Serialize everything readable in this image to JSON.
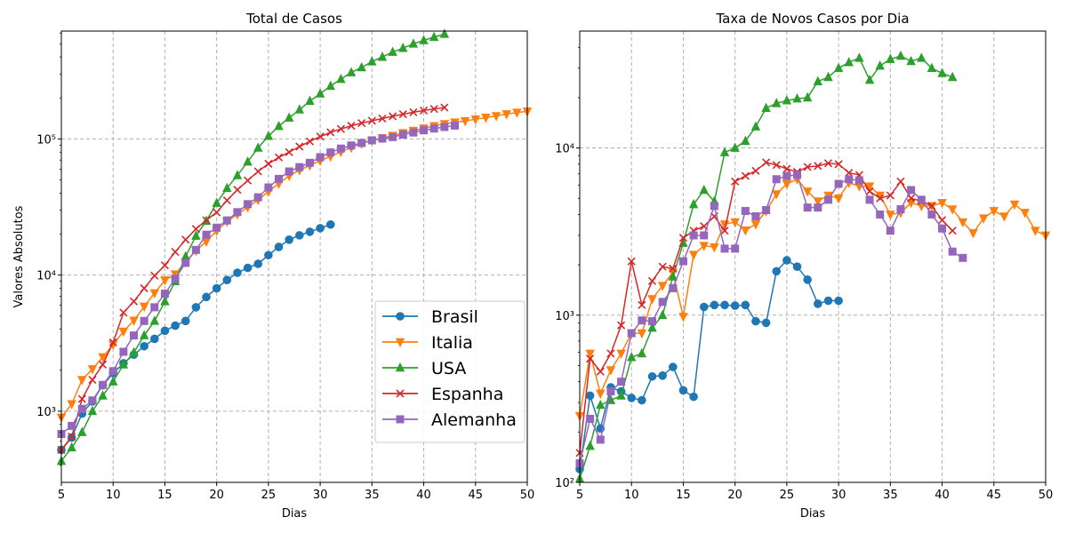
{
  "chart_data": [
    {
      "type": "line",
      "title": "Total de Casos",
      "xlabel": "Dias",
      "ylabel": "Valores Absolutos",
      "yscale": "log",
      "xlim": [
        5,
        50
      ],
      "ylim": [
        300,
        620000
      ],
      "xticks": [
        "5",
        "10",
        "15",
        "20",
        "25",
        "30",
        "35",
        "40",
        "45",
        "50"
      ],
      "yticks": [
        "10³",
        "10⁴",
        "10⁵"
      ],
      "grid": true,
      "legend": "center-right",
      "series": [
        {
          "name": "Brasil",
          "color": "#1f77b4",
          "marker": "circle",
          "x": [
            5,
            6,
            7,
            8,
            9,
            10,
            11,
            12,
            13,
            14,
            15,
            16,
            17,
            18,
            19,
            20,
            21,
            22,
            23,
            24,
            25,
            26,
            27,
            28,
            29,
            30,
            31
          ],
          "y": [
            520,
            640,
            960,
            1180,
            1550,
            1900,
            2250,
            2600,
            3000,
            3400,
            3900,
            4250,
            4600,
            5800,
            6900,
            8000,
            9200,
            10400,
            11300,
            12100,
            14000,
            16100,
            18200,
            19600,
            20800,
            22100,
            23500
          ]
        },
        {
          "name": "Italia",
          "color": "#ff7f0e",
          "marker": "triangle-down",
          "x": [
            5,
            6,
            7,
            8,
            9,
            10,
            11,
            12,
            13,
            14,
            15,
            16,
            17,
            18,
            19,
            20,
            21,
            22,
            23,
            24,
            25,
            26,
            27,
            28,
            29,
            30,
            31,
            32,
            33,
            34,
            35,
            36,
            37,
            38,
            39,
            40,
            41,
            42,
            43,
            44,
            45,
            46,
            47,
            48,
            49,
            50
          ],
          "y": [
            900,
            1130,
            1700,
            2040,
            2500,
            3090,
            3850,
            4640,
            5880,
            7380,
            9170,
            10150,
            12460,
            15110,
            17660,
            21150,
            24750,
            27980,
            31500,
            35700,
            41000,
            47000,
            53600,
            59100,
            63900,
            69200,
            74400,
            80500,
            86500,
            92500,
            97700,
            101700,
            105800,
            110600,
            115200,
            119800,
            124600,
            128900,
            132500,
            135600,
            139400,
            143600,
            147600,
            152300,
            156400,
            159500
          ]
        },
        {
          "name": "USA",
          "color": "#2ca02c",
          "marker": "triangle-up",
          "x": [
            5,
            6,
            7,
            8,
            9,
            10,
            11,
            12,
            13,
            14,
            15,
            16,
            17,
            18,
            19,
            20,
            21,
            22,
            23,
            24,
            25,
            26,
            27,
            28,
            29,
            30,
            31,
            32,
            33,
            34,
            35,
            36,
            37,
            38,
            39,
            40,
            41,
            42
          ],
          "y": [
            430,
            540,
            700,
            1000,
            1300,
            1650,
            2200,
            2700,
            3600,
            4600,
            6400,
            9000,
            13700,
            19400,
            25000,
            33800,
            43500,
            54000,
            68000,
            86000,
            105000,
            124000,
            143000,
            164000,
            190000,
            215000,
            245000,
            275000,
            308000,
            335000,
            370000,
            400000,
            435000,
            465000,
            500000,
            530000,
            560000,
            590000
          ]
        },
        {
          "name": "Espanha",
          "color": "#d62728",
          "marker": "x",
          "x": [
            5,
            6,
            7,
            8,
            9,
            10,
            11,
            12,
            13,
            14,
            15,
            16,
            17,
            18,
            19,
            20,
            21,
            22,
            23,
            24,
            25,
            26,
            27,
            28,
            29,
            30,
            31,
            32,
            33,
            34,
            35,
            36,
            37,
            38,
            39,
            40,
            41,
            42
          ],
          "y": [
            520,
            650,
            1230,
            1700,
            2200,
            3200,
            5300,
            6400,
            8000,
            9900,
            11800,
            14800,
            18200,
            21800,
            25300,
            28900,
            35400,
            42300,
            49500,
            57800,
            65700,
            73200,
            80000,
            87900,
            95900,
            104100,
            111800,
            118400,
            124900,
            130800,
            136000,
            141300,
            146700,
            152000,
            157000,
            161800,
            166000,
            170000
          ]
        },
        {
          "name": "Alemanha",
          "color": "#9467bd",
          "marker": "square",
          "x": [
            5,
            6,
            7,
            8,
            9,
            10,
            11,
            12,
            13,
            14,
            15,
            16,
            17,
            18,
            19,
            20,
            21,
            22,
            23,
            24,
            25,
            26,
            27,
            28,
            29,
            30,
            31,
            32,
            33,
            34,
            35,
            36,
            37,
            38,
            39,
            40,
            41,
            42,
            43
          ],
          "y": [
            680,
            780,
            1040,
            1200,
            1560,
            1970,
            2730,
            3600,
            4600,
            5800,
            7300,
            9400,
            12300,
            15300,
            19800,
            22300,
            25200,
            29000,
            33200,
            37300,
            44000,
            50900,
            57700,
            62100,
            66800,
            73500,
            79600,
            85000,
            89600,
            93400,
            97700,
            100700,
            103200,
            107600,
            111500,
            115700,
            119200,
            122400,
            125400
          ]
        }
      ]
    },
    {
      "type": "line",
      "title": "Taxa de Novos Casos por Dia",
      "xlabel": "Dias",
      "yscale": "log",
      "xlim": [
        5,
        50
      ],
      "ylim": [
        100,
        50000
      ],
      "xticks": [
        "5",
        "10",
        "15",
        "20",
        "25",
        "30",
        "35",
        "40",
        "45",
        "50"
      ],
      "yticks": [
        "10²",
        "10³",
        "10⁴"
      ],
      "grid": true,
      "series": [
        {
          "name": "Brasil",
          "color": "#1f77b4",
          "marker": "circle",
          "x": [
            5,
            6,
            7,
            8,
            9,
            10,
            11,
            12,
            13,
            14,
            15,
            16,
            17,
            18,
            19,
            20,
            21,
            22,
            23,
            24,
            25,
            26,
            27,
            28,
            29,
            30
          ],
          "y": [
            120,
            330,
            210,
            370,
            350,
            320,
            310,
            430,
            435,
            490,
            355,
            325,
            1120,
            1150,
            1150,
            1140,
            1150,
            920,
            900,
            1830,
            2130,
            1950,
            1630,
            1170,
            1220,
            1220
          ]
        },
        {
          "name": "Italia",
          "color": "#ff7f0e",
          "marker": "triangle-down",
          "x": [
            5,
            6,
            7,
            8,
            9,
            10,
            11,
            12,
            13,
            14,
            15,
            16,
            17,
            18,
            19,
            20,
            21,
            22,
            23,
            24,
            25,
            26,
            27,
            28,
            29,
            30,
            31,
            32,
            33,
            34,
            35,
            36,
            37,
            38,
            39,
            40,
            41,
            42,
            43,
            44,
            45,
            46,
            47,
            48,
            49,
            50
          ],
          "y": [
            250,
            590,
            340,
            470,
            590,
            780,
            780,
            1250,
            1500,
            1800,
            980,
            2300,
            2600,
            2550,
            3500,
            3600,
            3220,
            3500,
            4200,
            5300,
            6100,
            6500,
            5500,
            4800,
            5200,
            5000,
            6200,
            5900,
            5900,
            5200,
            4000,
            4100,
            4700,
            4500,
            4500,
            4700,
            4300,
            3600,
            3100,
            3800,
            4200,
            3900,
            4600,
            4100,
            3200,
            3000
          ]
        },
        {
          "name": "USA",
          "color": "#2ca02c",
          "marker": "triangle-up",
          "x": [
            5,
            6,
            7,
            8,
            9,
            10,
            11,
            12,
            13,
            14,
            15,
            16,
            17,
            18,
            19,
            20,
            21,
            22,
            23,
            24,
            25,
            26,
            27,
            28,
            29,
            30,
            31,
            32,
            33,
            34,
            35,
            36,
            37,
            38,
            39,
            40,
            41
          ],
          "y": [
            105,
            165,
            290,
            310,
            330,
            560,
            590,
            840,
            1000,
            1700,
            2700,
            4600,
            5600,
            4800,
            9400,
            10000,
            11000,
            13400,
            17300,
            18500,
            19200,
            19700,
            20000,
            25000,
            26500,
            30000,
            32500,
            34500,
            25500,
            31000,
            34000,
            35500,
            33000,
            34500,
            30000,
            28000,
            26500
          ]
        },
        {
          "name": "Espanha",
          "color": "#d62728",
          "marker": "x",
          "x": [
            5,
            6,
            7,
            8,
            9,
            10,
            11,
            12,
            13,
            14,
            15,
            16,
            17,
            18,
            19,
            20,
            21,
            22,
            23,
            24,
            25,
            26,
            27,
            28,
            29,
            30,
            31,
            32,
            33,
            34,
            35,
            36,
            37,
            38,
            39,
            40,
            41
          ],
          "y": [
            150,
            550,
            460,
            590,
            870,
            2100,
            1150,
            1600,
            1950,
            1900,
            2900,
            3200,
            3400,
            3900,
            3200,
            6300,
            6800,
            7300,
            8200,
            7900,
            7500,
            7200,
            7700,
            7800,
            8100,
            8000,
            7100,
            6900,
            5500,
            5000,
            5200,
            6300,
            5000,
            4800,
            4500,
            3700,
            3200
          ]
        },
        {
          "name": "Alemanha",
          "color": "#9467bd",
          "marker": "square",
          "x": [
            5,
            6,
            7,
            8,
            9,
            10,
            11,
            12,
            13,
            14,
            15,
            16,
            17,
            18,
            19,
            20,
            21,
            22,
            23,
            24,
            25,
            26,
            27,
            28,
            29,
            30,
            31,
            32,
            33,
            34,
            35,
            36,
            37,
            38,
            39,
            40,
            41,
            42
          ],
          "y": [
            130,
            240,
            180,
            350,
            400,
            780,
            930,
            920,
            1200,
            1450,
            2100,
            3000,
            3000,
            4500,
            2500,
            2500,
            4200,
            3900,
            4250,
            6500,
            6800,
            6900,
            4400,
            4400,
            4900,
            6100,
            6500,
            6400,
            4900,
            4000,
            3200,
            4300,
            5600,
            4900,
            4000,
            3300,
            2400,
            2200
          ]
        }
      ]
    }
  ]
}
